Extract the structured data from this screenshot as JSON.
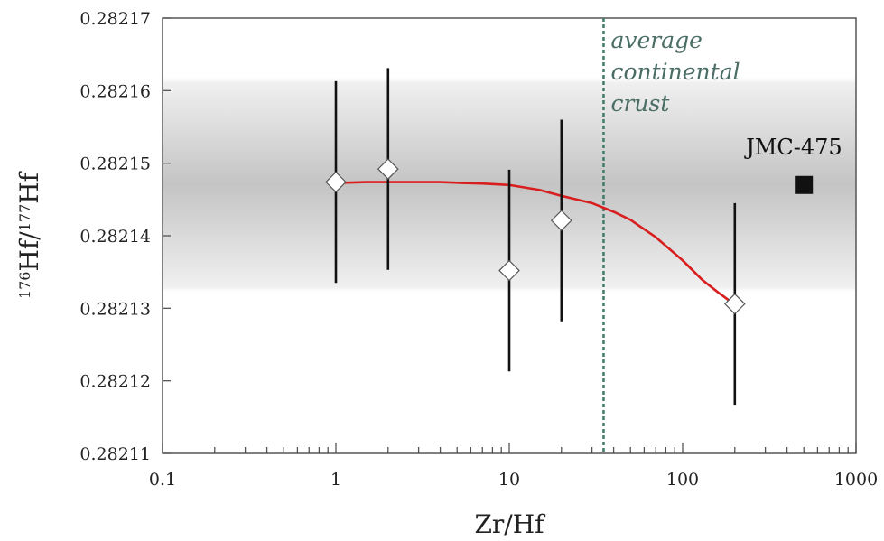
{
  "chart_data": {
    "type": "scatter",
    "xscale": "log",
    "xlim": [
      0.1,
      1000
    ],
    "ylim": [
      0.28211,
      0.28217
    ],
    "xlabel": "Zr/Hf",
    "ylabel": {
      "sup1": "176",
      "base1": "Hf/",
      "sup2": "177",
      "base2": "Hf"
    },
    "x_ticks": [
      {
        "value": 0.1,
        "label": "0.1"
      },
      {
        "value": 1,
        "label": "1"
      },
      {
        "value": 10,
        "label": "10"
      },
      {
        "value": 100,
        "label": "100"
      },
      {
        "value": 1000,
        "label": "1000"
      }
    ],
    "y_ticks": [
      {
        "value": 0.28211,
        "label": "0.28211"
      },
      {
        "value": 0.28212,
        "label": "0.28212"
      },
      {
        "value": 0.28213,
        "label": "0.28213"
      },
      {
        "value": 0.28214,
        "label": "0.28214"
      },
      {
        "value": 0.28215,
        "label": "0.28215"
      },
      {
        "value": 0.28216,
        "label": "0.28216"
      },
      {
        "value": 0.28217,
        "label": "0.28217"
      }
    ],
    "band": {
      "y_low": 0.282132,
      "y_high": 0.282162,
      "center": 0.282147
    },
    "points": [
      {
        "x": 1,
        "y": 0.2821474,
        "err": 1.39e-05
      },
      {
        "x": 2,
        "y": 0.2821492,
        "err": 1.39e-05
      },
      {
        "x": 10,
        "y": 0.2821352,
        "err": 1.39e-05
      },
      {
        "x": 20,
        "y": 0.2821421,
        "err": 1.39e-05
      },
      {
        "x": 200,
        "y": 0.2821306,
        "err": 1.39e-05
      }
    ],
    "reference_point": {
      "x": 500,
      "y": 0.282147,
      "label": "JMC-475"
    },
    "vline": {
      "x": 35,
      "label_lines": [
        "average",
        "continental",
        "crust"
      ]
    },
    "curve": {
      "x": [
        1.1,
        1.5,
        2,
        3,
        4,
        5,
        7,
        10,
        15,
        20,
        30,
        40,
        50,
        70,
        100,
        130,
        160,
        200
      ],
      "y": [
        0.2821473,
        0.2821474,
        0.2821474,
        0.2821474,
        0.2821474,
        0.2821473,
        0.2821472,
        0.282147,
        0.2821463,
        0.2821455,
        0.2821445,
        0.2821433,
        0.2821422,
        0.2821398,
        0.2821366,
        0.2821339,
        0.2821322,
        0.2821305
      ]
    },
    "colors": {
      "curve": "#d81e1e",
      "vline": "#3f7a6a",
      "errorbar": "#111111",
      "marker_fill": "#ffffff",
      "marker_edge": "#555555",
      "reference": "#111111"
    }
  }
}
